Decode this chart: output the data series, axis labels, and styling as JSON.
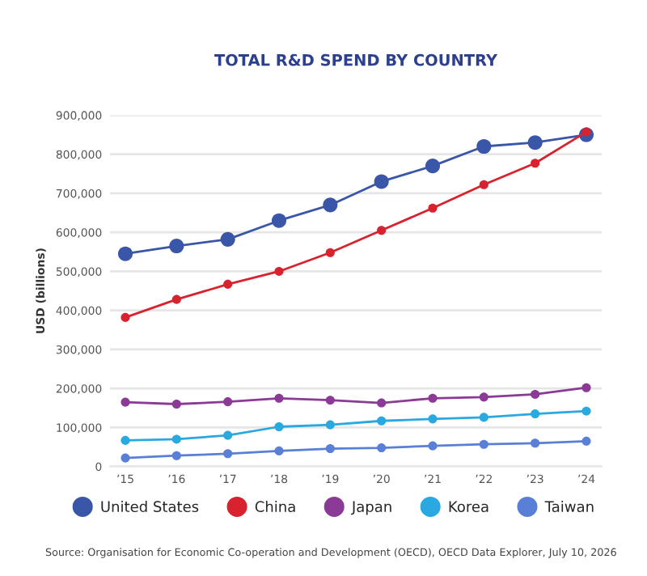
{
  "chart_data": {
    "type": "line",
    "title": "TOTAL R&D SPEND BY COUNTRY",
    "ylabel": "USD (billions)",
    "categories": [
      "’15",
      "’16",
      "’17",
      "’18",
      "’19",
      "’20",
      "’21",
      "’22",
      "’23",
      "’24"
    ],
    "series": [
      {
        "name": "United States",
        "color": "#3a56a8",
        "values": [
          545000,
          565000,
          582000,
          630000,
          670000,
          730000,
          770000,
          820000,
          830000,
          850000
        ]
      },
      {
        "name": "China",
        "color": "#d8232f",
        "values": [
          382000,
          428000,
          467000,
          500000,
          548000,
          605000,
          662000,
          722000,
          777000,
          857000
        ]
      },
      {
        "name": "Japan",
        "color": "#8b3a96",
        "values": [
          165000,
          160000,
          166000,
          175000,
          170000,
          163000,
          175000,
          178000,
          185000,
          202000
        ]
      },
      {
        "name": "Korea",
        "color": "#2aa8e0",
        "values": [
          67000,
          70000,
          80000,
          102000,
          107000,
          117000,
          122000,
          126000,
          135000,
          142000
        ]
      },
      {
        "name": "Taiwan",
        "color": "#5a7fd6",
        "values": [
          22000,
          28000,
          33000,
          40000,
          46000,
          48000,
          53000,
          57000,
          60000,
          65000
        ]
      }
    ],
    "ylim": [
      0,
      900000
    ],
    "yticks": [
      {
        "value": 0,
        "label": "0"
      },
      {
        "value": 100000,
        "label": "100,000"
      },
      {
        "value": 200000,
        "label": "200,000"
      },
      {
        "value": 300000,
        "label": "300,000"
      },
      {
        "value": 400000,
        "label": "400,000"
      },
      {
        "value": 500000,
        "label": "500,000"
      },
      {
        "value": 600000,
        "label": "600,000"
      },
      {
        "value": 700000,
        "label": "700,000"
      },
      {
        "value": 800000,
        "label": "800,000"
      },
      {
        "value": 900000,
        "label": "900,000"
      }
    ],
    "grid": "y",
    "legend": "bottom",
    "marker": "circle",
    "line_style": "solid",
    "annotations": [
      "Source: Organisation for Economic Co-operation and Development (OECD), OECD Data Explorer, July 10, 2026"
    ]
  }
}
